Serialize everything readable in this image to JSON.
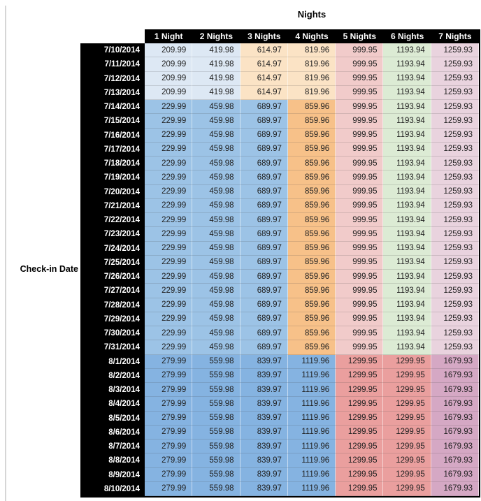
{
  "title": "Nights",
  "row_axis_label": "Check-in Date",
  "chart_data": {
    "type": "table",
    "title": "Nights",
    "row_axis_label": "Check-in Date",
    "columns": [
      "1 Night",
      "2 Nights",
      "3 Nights",
      "4 Nights",
      "5 Nights",
      "6 Nights",
      "7 Nights"
    ],
    "palette": {
      "light_blue": "#dde8f4",
      "medium_blue": "#9cc3e6",
      "dark_blue": "#85b3e1",
      "light_orange": "#fbe3c5",
      "medium_orange": "#f7c189",
      "light_red": "#f1cbca",
      "medium_red": "#ea9f9e",
      "light_green": "#dcebd4",
      "light_pink": "#e9d3de",
      "medium_pink": "#d5a8c4",
      "header_bg": "#000000",
      "header_text": "#ffffff",
      "cell_text": "#212121"
    },
    "group_colors": {
      "A": [
        "light_blue",
        "light_blue",
        "light_orange",
        "light_orange",
        "light_red",
        "light_green",
        "light_pink"
      ],
      "B": [
        "medium_blue",
        "medium_blue",
        "medium_blue",
        "medium_orange",
        "light_red",
        "light_green",
        "light_pink"
      ],
      "C": [
        "dark_blue",
        "dark_blue",
        "dark_blue",
        "dark_blue",
        "medium_red",
        "medium_red",
        "medium_pink"
      ]
    },
    "rows": [
      {
        "date": "7/10/2014",
        "group": "A",
        "values": [
          "209.99",
          "419.98",
          "614.97",
          "819.96",
          "999.95",
          "1193.94",
          "1259.93"
        ]
      },
      {
        "date": "7/11/2014",
        "group": "A",
        "values": [
          "209.99",
          "419.98",
          "614.97",
          "819.96",
          "999.95",
          "1193.94",
          "1259.93"
        ]
      },
      {
        "date": "7/12/2014",
        "group": "A",
        "values": [
          "209.99",
          "419.98",
          "614.97",
          "819.96",
          "999.95",
          "1193.94",
          "1259.93"
        ]
      },
      {
        "date": "7/13/2014",
        "group": "A",
        "values": [
          "209.99",
          "419.98",
          "614.97",
          "819.96",
          "999.95",
          "1193.94",
          "1259.93"
        ]
      },
      {
        "date": "7/14/2014",
        "group": "B",
        "values": [
          "229.99",
          "459.98",
          "689.97",
          "859.96",
          "999.95",
          "1193.94",
          "1259.93"
        ]
      },
      {
        "date": "7/15/2014",
        "group": "B",
        "values": [
          "229.99",
          "459.98",
          "689.97",
          "859.96",
          "999.95",
          "1193.94",
          "1259.93"
        ]
      },
      {
        "date": "7/16/2014",
        "group": "B",
        "values": [
          "229.99",
          "459.98",
          "689.97",
          "859.96",
          "999.95",
          "1193.94",
          "1259.93"
        ]
      },
      {
        "date": "7/17/2014",
        "group": "B",
        "values": [
          "229.99",
          "459.98",
          "689.97",
          "859.96",
          "999.95",
          "1193.94",
          "1259.93"
        ]
      },
      {
        "date": "7/18/2014",
        "group": "B",
        "values": [
          "229.99",
          "459.98",
          "689.97",
          "859.96",
          "999.95",
          "1193.94",
          "1259.93"
        ]
      },
      {
        "date": "7/19/2014",
        "group": "B",
        "values": [
          "229.99",
          "459.98",
          "689.97",
          "859.96",
          "999.95",
          "1193.94",
          "1259.93"
        ]
      },
      {
        "date": "7/20/2014",
        "group": "B",
        "values": [
          "229.99",
          "459.98",
          "689.97",
          "859.96",
          "999.95",
          "1193.94",
          "1259.93"
        ]
      },
      {
        "date": "7/21/2014",
        "group": "B",
        "values": [
          "229.99",
          "459.98",
          "689.97",
          "859.96",
          "999.95",
          "1193.94",
          "1259.93"
        ]
      },
      {
        "date": "7/22/2014",
        "group": "B",
        "values": [
          "229.99",
          "459.98",
          "689.97",
          "859.96",
          "999.95",
          "1193.94",
          "1259.93"
        ]
      },
      {
        "date": "7/23/2014",
        "group": "B",
        "values": [
          "229.99",
          "459.98",
          "689.97",
          "859.96",
          "999.95",
          "1193.94",
          "1259.93"
        ]
      },
      {
        "date": "7/24/2014",
        "group": "B",
        "values": [
          "229.99",
          "459.98",
          "689.97",
          "859.96",
          "999.95",
          "1193.94",
          "1259.93"
        ]
      },
      {
        "date": "7/25/2014",
        "group": "B",
        "values": [
          "229.99",
          "459.98",
          "689.97",
          "859.96",
          "999.95",
          "1193.94",
          "1259.93"
        ]
      },
      {
        "date": "7/26/2014",
        "group": "B",
        "values": [
          "229.99",
          "459.98",
          "689.97",
          "859.96",
          "999.95",
          "1193.94",
          "1259.93"
        ]
      },
      {
        "date": "7/27/2014",
        "group": "B",
        "values": [
          "229.99",
          "459.98",
          "689.97",
          "859.96",
          "999.95",
          "1193.94",
          "1259.93"
        ]
      },
      {
        "date": "7/28/2014",
        "group": "B",
        "values": [
          "229.99",
          "459.98",
          "689.97",
          "859.96",
          "999.95",
          "1193.94",
          "1259.93"
        ]
      },
      {
        "date": "7/29/2014",
        "group": "B",
        "values": [
          "229.99",
          "459.98",
          "689.97",
          "859.96",
          "999.95",
          "1193.94",
          "1259.93"
        ]
      },
      {
        "date": "7/30/2014",
        "group": "B",
        "values": [
          "229.99",
          "459.98",
          "689.97",
          "859.96",
          "999.95",
          "1193.94",
          "1259.93"
        ]
      },
      {
        "date": "7/31/2014",
        "group": "B",
        "values": [
          "229.99",
          "459.98",
          "689.97",
          "859.96",
          "999.95",
          "1193.94",
          "1259.93"
        ]
      },
      {
        "date": "8/1/2014",
        "group": "C",
        "values": [
          "279.99",
          "559.98",
          "839.97",
          "1119.96",
          "1299.95",
          "1299.95",
          "1679.93"
        ]
      },
      {
        "date": "8/2/2014",
        "group": "C",
        "values": [
          "279.99",
          "559.98",
          "839.97",
          "1119.96",
          "1299.95",
          "1299.95",
          "1679.93"
        ]
      },
      {
        "date": "8/3/2014",
        "group": "C",
        "values": [
          "279.99",
          "559.98",
          "839.97",
          "1119.96",
          "1299.95",
          "1299.95",
          "1679.93"
        ]
      },
      {
        "date": "8/4/2014",
        "group": "C",
        "values": [
          "279.99",
          "559.98",
          "839.97",
          "1119.96",
          "1299.95",
          "1299.95",
          "1679.93"
        ]
      },
      {
        "date": "8/5/2014",
        "group": "C",
        "values": [
          "279.99",
          "559.98",
          "839.97",
          "1119.96",
          "1299.95",
          "1299.95",
          "1679.93"
        ]
      },
      {
        "date": "8/6/2014",
        "group": "C",
        "values": [
          "279.99",
          "559.98",
          "839.97",
          "1119.96",
          "1299.95",
          "1299.95",
          "1679.93"
        ]
      },
      {
        "date": "8/7/2014",
        "group": "C",
        "values": [
          "279.99",
          "559.98",
          "839.97",
          "1119.96",
          "1299.95",
          "1299.95",
          "1679.93"
        ]
      },
      {
        "date": "8/8/2014",
        "group": "C",
        "values": [
          "279.99",
          "559.98",
          "839.97",
          "1119.96",
          "1299.95",
          "1299.95",
          "1679.93"
        ]
      },
      {
        "date": "8/9/2014",
        "group": "C",
        "values": [
          "279.99",
          "559.98",
          "839.97",
          "1119.96",
          "1299.95",
          "1299.95",
          "1679.93"
        ]
      },
      {
        "date": "8/10/2014",
        "group": "C",
        "values": [
          "279.99",
          "559.98",
          "839.97",
          "1119.96",
          "1299.95",
          "1299.95",
          "1679.93"
        ]
      }
    ]
  }
}
